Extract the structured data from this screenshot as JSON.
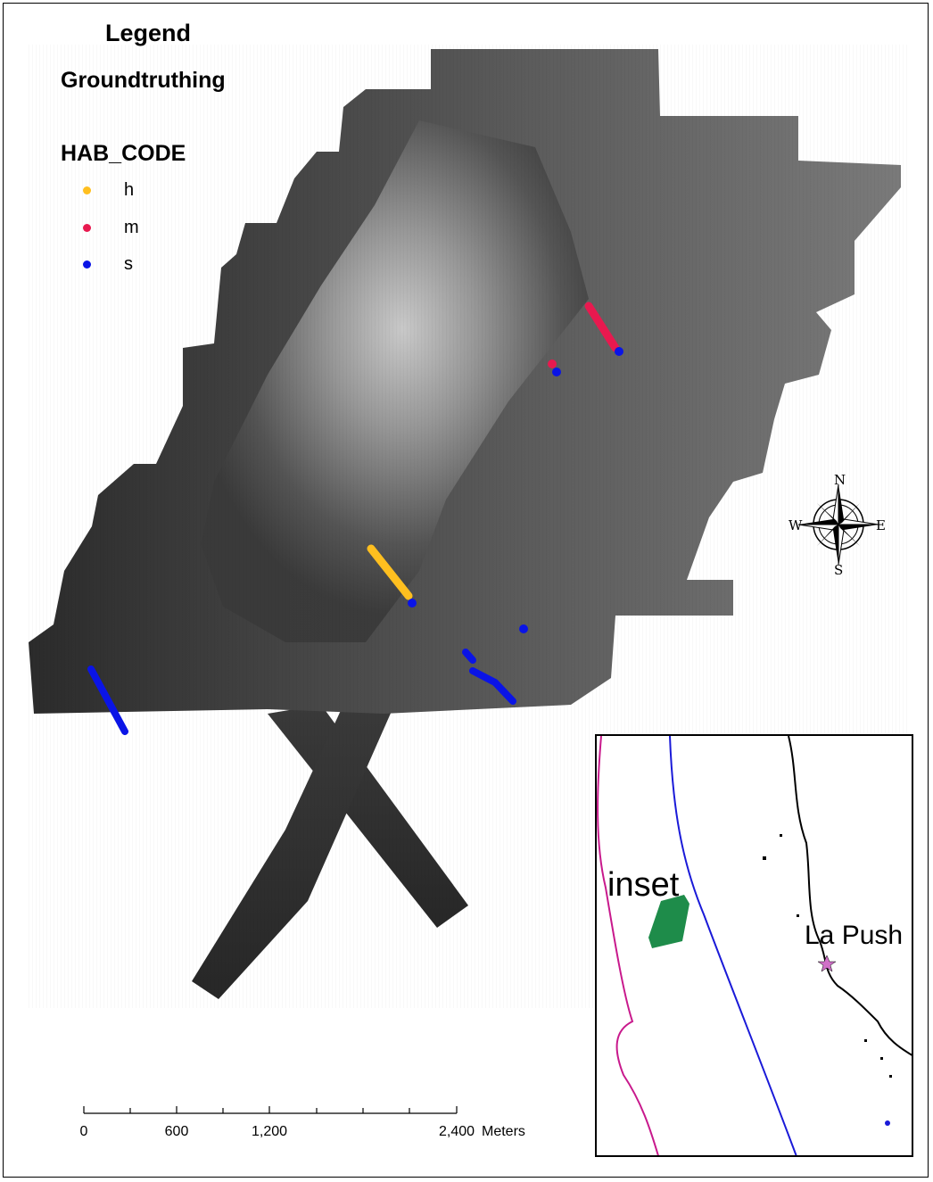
{
  "legend": {
    "title": "Legend",
    "subtitle": "Groundtruthing",
    "field": "HAB_CODE",
    "items": [
      {
        "code": "h",
        "color": "#ffbf1f"
      },
      {
        "code": "m",
        "color": "#e8194f"
      },
      {
        "code": "s",
        "color": "#0a14e6"
      }
    ]
  },
  "compass": {
    "n": "N",
    "s": "S",
    "e": "E",
    "w": "W"
  },
  "scale_bar": {
    "labels": [
      "0",
      "600",
      "1,200",
      "2,400"
    ],
    "unit": "Meters"
  },
  "inset": {
    "label": "inset",
    "town": "La Push",
    "colors": {
      "depth_contour_outer": "#c8198c",
      "depth_contour_inner": "#1a1ad8",
      "survey_area": "#1e8c4a",
      "coastline": "#000000",
      "town_marker": "#d070c8"
    }
  },
  "colors": {
    "seafloor_dark": "#2a2a2a",
    "seafloor_light": "#c8c8c8"
  }
}
